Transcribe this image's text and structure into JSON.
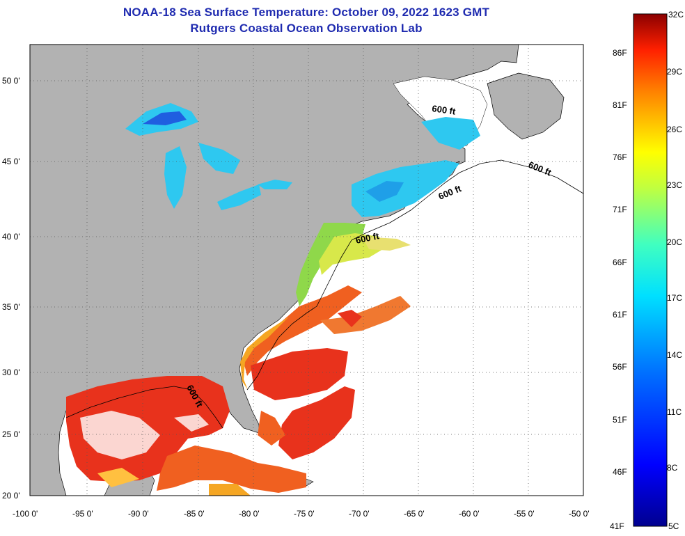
{
  "title": "NOAA-18 Sea Surface Temperature:  October 09, 2022 1623 GMT",
  "subtitle": "Rutgers Coastal Ocean Observation Lab",
  "lat_ticks": [
    "50 0'",
    "45 0'",
    "40 0'",
    "35 0'",
    "30 0'",
    "25 0'",
    "20 0'"
  ],
  "lon_ticks": [
    "-100 0'",
    "-95 0'",
    "-90 0'",
    "-85 0'",
    "-80 0'",
    "-75 0'",
    "-70 0'",
    "-65 0'",
    "-60 0'",
    "-55 0'",
    "-50 0'"
  ],
  "contour_label": "600 ft",
  "colorbar": {
    "celsius": [
      "32C",
      "29C",
      "26C",
      "23C",
      "20C",
      "17C",
      "14C",
      "11C",
      "8C",
      "5C"
    ],
    "fahrenheit": [
      "86F",
      "81F",
      "76F",
      "71F",
      "66F",
      "61F",
      "56F",
      "51F",
      "46F",
      "41F"
    ]
  },
  "colors": {
    "land": "#b2b2b2",
    "title": "#1f2bb0",
    "gulf_sst": "#e8321c",
    "gulfstream_sst": "#f06020",
    "shelf_sst": "#8fd84a",
    "north_sst": "#2ec8f0",
    "cold_sst": "#1f5fe0"
  }
}
